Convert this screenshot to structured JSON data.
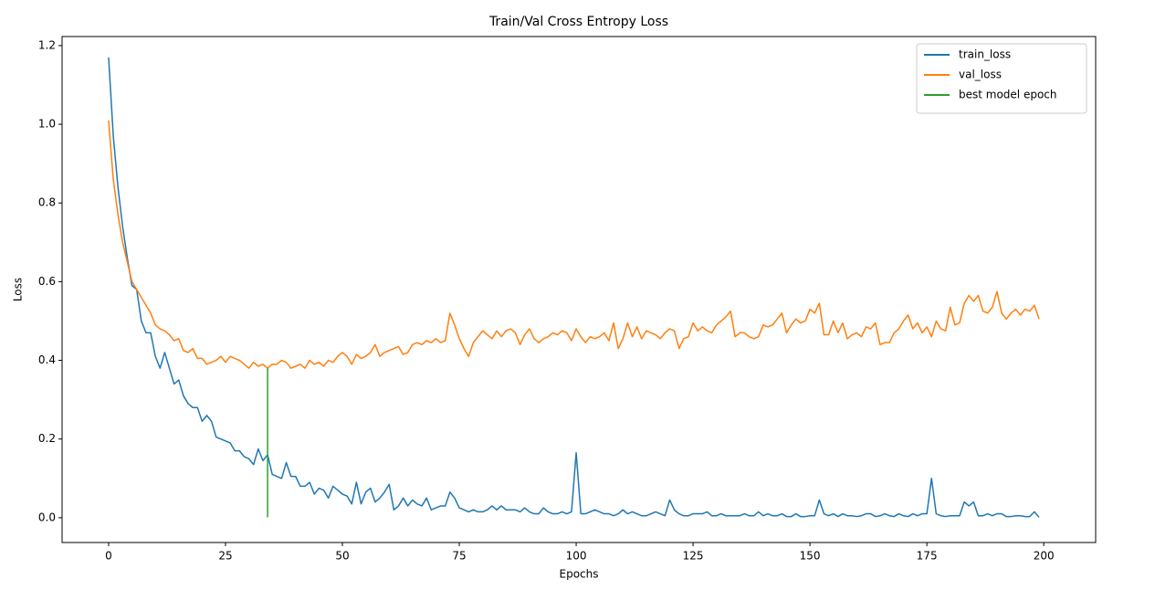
{
  "chart_data": {
    "type": "line",
    "title": "Train/Val Cross Entropy Loss",
    "xlabel": "Epochs",
    "ylabel": "Loss",
    "xlim": [
      -9.95,
      211.1
    ],
    "ylim": [
      -0.063,
      1.223
    ],
    "xticks": [
      0,
      25,
      50,
      75,
      100,
      125,
      150,
      175,
      200
    ],
    "yticks": [
      {
        "value": 0,
        "label": "0.0"
      },
      0.2,
      0.4,
      0.6,
      0.8,
      {
        "value": 1,
        "label": "1.0"
      },
      1.2
    ],
    "legend": "upper right",
    "grid": false,
    "x": [
      0,
      1,
      2,
      3,
      4,
      5,
      6,
      7,
      8,
      9,
      10,
      11,
      12,
      13,
      14,
      15,
      16,
      17,
      18,
      19,
      20,
      21,
      22,
      23,
      24,
      25,
      26,
      27,
      28,
      29,
      30,
      31,
      32,
      33,
      34,
      35,
      36,
      37,
      38,
      39,
      40,
      41,
      42,
      43,
      44,
      45,
      46,
      47,
      48,
      49,
      50,
      51,
      52,
      53,
      54,
      55,
      56,
      57,
      58,
      59,
      60,
      61,
      62,
      63,
      64,
      65,
      66,
      67,
      68,
      69,
      70,
      71,
      72,
      73,
      74,
      75,
      76,
      77,
      78,
      79,
      80,
      81,
      82,
      83,
      84,
      85,
      86,
      87,
      88,
      89,
      90,
      91,
      92,
      93,
      94,
      95,
      96,
      97,
      98,
      99,
      100,
      101,
      102,
      103,
      104,
      105,
      106,
      107,
      108,
      109,
      110,
      111,
      112,
      113,
      114,
      115,
      116,
      117,
      118,
      119,
      120,
      121,
      122,
      123,
      124,
      125,
      126,
      127,
      128,
      129,
      130,
      131,
      132,
      133,
      134,
      135,
      136,
      137,
      138,
      139,
      140,
      141,
      142,
      143,
      144,
      145,
      146,
      147,
      148,
      149,
      150,
      151,
      152,
      153,
      154,
      155,
      156,
      157,
      158,
      159,
      160,
      161,
      162,
      163,
      164,
      165,
      166,
      167,
      168,
      169,
      170,
      171,
      172,
      173,
      174,
      175,
      176,
      177,
      178,
      179,
      180,
      181,
      182,
      183,
      184,
      185,
      186,
      187,
      188,
      189,
      190,
      191,
      192,
      193,
      194,
      195,
      196,
      197,
      198,
      199
    ],
    "series": [
      {
        "name": "train_loss",
        "color": "#1f77b4",
        "values": [
          1.17,
          0.97,
          0.84,
          0.74,
          0.66,
          0.59,
          0.58,
          0.5,
          0.47,
          0.47,
          0.41,
          0.38,
          0.42,
          0.38,
          0.34,
          0.35,
          0.31,
          0.29,
          0.28,
          0.28,
          0.245,
          0.26,
          0.245,
          0.205,
          0.2,
          0.195,
          0.19,
          0.17,
          0.17,
          0.155,
          0.15,
          0.135,
          0.175,
          0.145,
          0.16,
          0.11,
          0.105,
          0.1,
          0.14,
          0.105,
          0.105,
          0.08,
          0.08,
          0.09,
          0.06,
          0.075,
          0.07,
          0.05,
          0.08,
          0.07,
          0.06,
          0.055,
          0.035,
          0.09,
          0.035,
          0.065,
          0.075,
          0.04,
          0.05,
          0.065,
          0.085,
          0.02,
          0.03,
          0.05,
          0.03,
          0.045,
          0.035,
          0.03,
          0.05,
          0.02,
          0.025,
          0.03,
          0.03,
          0.065,
          0.05,
          0.025,
          0.02,
          0.015,
          0.02,
          0.015,
          0.015,
          0.02,
          0.03,
          0.02,
          0.03,
          0.02,
          0.02,
          0.02,
          0.015,
          0.025,
          0.015,
          0.01,
          0.01,
          0.025,
          0.015,
          0.01,
          0.01,
          0.015,
          0.01,
          0.015,
          0.165,
          0.01,
          0.01,
          0.015,
          0.02,
          0.015,
          0.01,
          0.01,
          0.005,
          0.01,
          0.02,
          0.01,
          0.015,
          0.01,
          0.005,
          0.005,
          0.01,
          0.015,
          0.01,
          0.005,
          0.045,
          0.02,
          0.01,
          0.005,
          0.005,
          0.01,
          0.01,
          0.01,
          0.015,
          0.005,
          0.005,
          0.01,
          0.005,
          0.005,
          0.005,
          0.005,
          0.01,
          0.005,
          0.005,
          0.015,
          0.005,
          0.01,
          0.005,
          0.005,
          0.01,
          0.003,
          0.003,
          0.01,
          0.003,
          0.003,
          0.005,
          0.005,
          0.045,
          0.01,
          0.005,
          0.01,
          0.003,
          0.01,
          0.005,
          0.005,
          0.003,
          0.005,
          0.01,
          0.01,
          0.003,
          0.005,
          0.01,
          0.005,
          0.003,
          0.01,
          0.005,
          0.003,
          0.01,
          0.005,
          0.01,
          0.01,
          0.1,
          0.01,
          0.005,
          0.003,
          0.005,
          0.005,
          0.005,
          0.04,
          0.03,
          0.04,
          0.005,
          0.005,
          0.01,
          0.005,
          0.01,
          0.01,
          0.003,
          0.003,
          0.005,
          0.005,
          0.003,
          0.003,
          0.015,
          0.001
        ]
      },
      {
        "name": "val_loss",
        "color": "#ff7f0e",
        "values": [
          1.01,
          0.86,
          0.77,
          0.7,
          0.65,
          0.6,
          0.58,
          0.56,
          0.54,
          0.52,
          0.49,
          0.48,
          0.475,
          0.465,
          0.45,
          0.455,
          0.425,
          0.42,
          0.43,
          0.405,
          0.405,
          0.39,
          0.395,
          0.4,
          0.41,
          0.395,
          0.41,
          0.405,
          0.4,
          0.39,
          0.38,
          0.395,
          0.385,
          0.39,
          0.38,
          0.39,
          0.39,
          0.4,
          0.395,
          0.38,
          0.385,
          0.39,
          0.38,
          0.4,
          0.39,
          0.395,
          0.385,
          0.4,
          0.395,
          0.41,
          0.42,
          0.41,
          0.39,
          0.415,
          0.405,
          0.41,
          0.42,
          0.44,
          0.41,
          0.42,
          0.425,
          0.43,
          0.435,
          0.415,
          0.42,
          0.44,
          0.445,
          0.44,
          0.45,
          0.445,
          0.455,
          0.445,
          0.45,
          0.52,
          0.49,
          0.455,
          0.43,
          0.41,
          0.445,
          0.46,
          0.475,
          0.465,
          0.455,
          0.475,
          0.46,
          0.475,
          0.48,
          0.47,
          0.44,
          0.465,
          0.48,
          0.455,
          0.445,
          0.455,
          0.46,
          0.47,
          0.465,
          0.475,
          0.47,
          0.45,
          0.48,
          0.46,
          0.445,
          0.46,
          0.455,
          0.46,
          0.47,
          0.45,
          0.495,
          0.43,
          0.455,
          0.495,
          0.46,
          0.485,
          0.455,
          0.475,
          0.47,
          0.465,
          0.455,
          0.47,
          0.48,
          0.475,
          0.43,
          0.455,
          0.46,
          0.495,
          0.475,
          0.485,
          0.475,
          0.47,
          0.49,
          0.5,
          0.51,
          0.525,
          0.46,
          0.47,
          0.47,
          0.46,
          0.455,
          0.46,
          0.49,
          0.485,
          0.49,
          0.505,
          0.52,
          0.47,
          0.49,
          0.505,
          0.495,
          0.5,
          0.53,
          0.52,
          0.545,
          0.465,
          0.465,
          0.5,
          0.47,
          0.495,
          0.455,
          0.465,
          0.47,
          0.46,
          0.485,
          0.48,
          0.495,
          0.44,
          0.445,
          0.445,
          0.47,
          0.48,
          0.5,
          0.515,
          0.48,
          0.495,
          0.47,
          0.485,
          0.46,
          0.5,
          0.48,
          0.475,
          0.535,
          0.49,
          0.495,
          0.545,
          0.565,
          0.55,
          0.565,
          0.525,
          0.52,
          0.535,
          0.575,
          0.52,
          0.505,
          0.52,
          0.53,
          0.515,
          0.53,
          0.525,
          0.54,
          0.505
        ]
      },
      {
        "name": "best model epoch",
        "color": "#2ca02c",
        "x": [
          34,
          34
        ],
        "values": [
          0.001,
          0.38
        ]
      }
    ]
  }
}
